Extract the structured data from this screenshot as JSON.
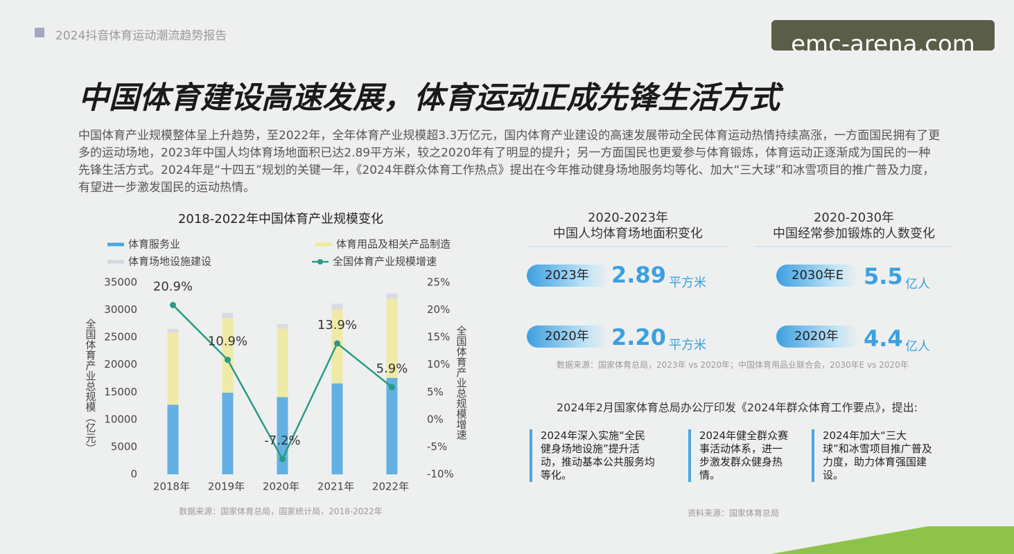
{
  "header": {
    "report": "2024抖音体育运动潮流趋势报告",
    "watermark": "emc-arena.com"
  },
  "headline": "中国体育建设高速发展，体育运动正成先锋生活方式",
  "intro": "中国体育产业规模整体呈上升趋势，至2022年，全年体育产业规模超3.3万亿元，国内体育产业建设的高速发展带动全民体育运动热情持续高涨，一方面国民拥有了更多的运动场地，2023年中国人均体育场地面积已达2.89平方米，较之2020年有了明显的提升；另一方面国民也更爱参与体育锻炼，体育运动正逐渐成为国民的一种先锋生活方式。2024年是“十四五”规划的关键一年，《2024年群众体育工作热点》提出在今年推动健身场地服务均等化、加大“三大球”和冰雪项目的推广普及力度，有望进一步激发国民的运动热情。",
  "chart_data": {
    "type": "bar",
    "title": "2018-2022年中国体育产业规模变化",
    "categories": [
      "2018年",
      "2019年",
      "2020年",
      "2021年",
      "2022年"
    ],
    "series": [
      {
        "name": "体育服务业",
        "color": "#4aa6e0",
        "values": [
          12700,
          14900,
          14100,
          16600,
          17600
        ]
      },
      {
        "name": "体育用品及相关产品制造",
        "color": "#eeea9a",
        "values": [
          13200,
          13600,
          12500,
          13500,
          14400
        ]
      },
      {
        "name": "体育场地设施建设",
        "color": "#d6d6e2",
        "values": [
          650,
          950,
          800,
          1050,
          1000
        ]
      },
      {
        "name": "全国体育产业规模增速",
        "type": "line",
        "axis": "y2",
        "color": "#2a9a86",
        "values": [
          20.9,
          10.9,
          -7.2,
          13.9,
          5.9
        ],
        "value_labels": [
          "20.9%",
          "10.9%",
          "-7.2%",
          "13.9%",
          "5.9%"
        ]
      }
    ],
    "stacked": true,
    "ylim": [
      0,
      35000
    ],
    "yticks": [
      0,
      5000,
      10000,
      15000,
      20000,
      25000,
      30000,
      35000
    ],
    "y2lim": [
      -10,
      25
    ],
    "y2ticks": [
      {
        "value": -10,
        "label": "-10%"
      },
      {
        "value": -5,
        "label": "-5%"
      },
      {
        "value": 0,
        "label": "0%"
      },
      {
        "value": 5,
        "label": "5%"
      },
      {
        "value": 10,
        "label": "10%"
      },
      {
        "value": 15,
        "label": "15%"
      },
      {
        "value": 20,
        "label": "20%"
      },
      {
        "value": 25,
        "label": "25%"
      }
    ],
    "ylabel": "全国体育产业总规模（亿元）",
    "y2label": "全国体育产业总规模增速",
    "source": "数据来源：国家体育总局，国家统计局，2018-2022年"
  },
  "stats": [
    {
      "title": "2020-2023年",
      "subtitle": "中国人均体育场地面积变化",
      "rows": [
        {
          "label": "2023年",
          "value": "2.89",
          "unit": "平方米"
        },
        {
          "label": "2020年",
          "value": "2.20",
          "unit": "平方米"
        }
      ]
    },
    {
      "title": "2020-2030年",
      "subtitle": "中国经常参加锻炼的人数变化",
      "rows": [
        {
          "label": "2030年E",
          "value": "5.5",
          "unit": "亿人"
        },
        {
          "label": "2020年",
          "value": "4.4",
          "unit": "亿人"
        }
      ]
    }
  ],
  "stats_source": "数据来源：国家体育总局，2023年 vs 2020年；中国体育用品业联合会，2030年E vs 2020年",
  "notice": {
    "title": "2024年2月国家体育总局办公厅印发《2024年群众体育工作要点》，提出:",
    "items": [
      "2024年深入实施“全民健身场地设施”提升活动，推动基本公共服务均等化。",
      "2024年健全群众赛事活动体系，进一步激发群众健身热情。",
      "2024年加大“三大球”和冰雪项目推广普及力度，助力体育强国建设。"
    ],
    "source": "资料来源：国家体育总局"
  }
}
